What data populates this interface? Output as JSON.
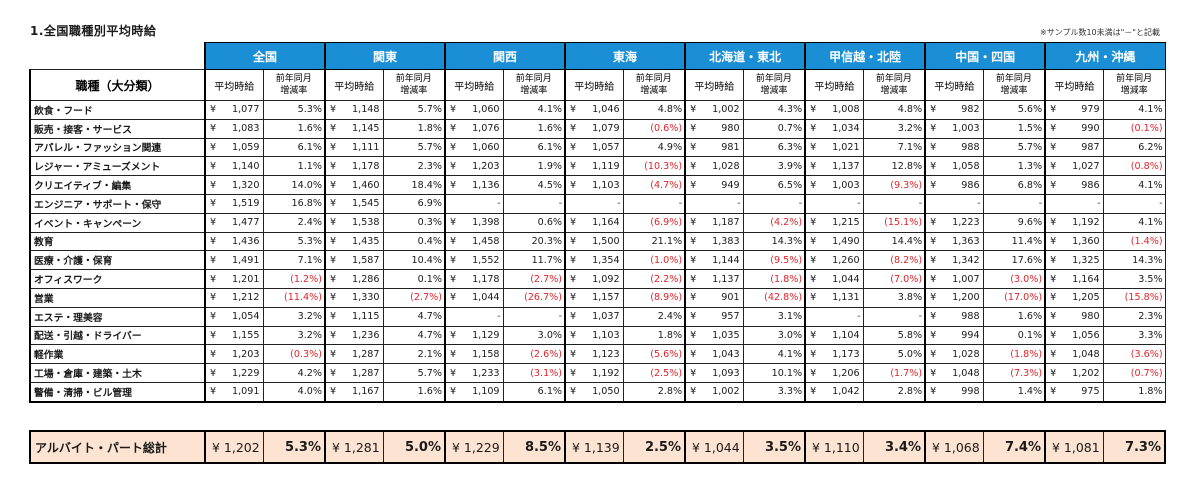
{
  "title": "1.全国職種別平均時給",
  "note": "※サンプル数10未満は\"－\"と記載",
  "regions": [
    "全国",
    "関東",
    "関西",
    "東海",
    "北海道・東北",
    "甲信越・北陸",
    "中国・四国",
    "九州・沖縄"
  ],
  "category_header": "職種（大分類）",
  "sub_wage": "平均時給",
  "sub_rate_1": "前年同月",
  "sub_rate_2": "増減率",
  "yen": "¥",
  "rows": [
    {
      "job": "飲食・フード",
      "cells": [
        [
          "1,077",
          "5.3%"
        ],
        [
          "1,148",
          "5.7%"
        ],
        [
          "1,060",
          "4.1%"
        ],
        [
          "1,046",
          "4.8%"
        ],
        [
          "1,002",
          "4.3%"
        ],
        [
          "1,008",
          "4.8%"
        ],
        [
          "982",
          "5.6%"
        ],
        [
          "979",
          "4.1%"
        ]
      ]
    },
    {
      "job": "販売・接客・サービス",
      "cells": [
        [
          "1,083",
          "1.6%"
        ],
        [
          "1,145",
          "1.8%"
        ],
        [
          "1,076",
          "1.6%"
        ],
        [
          "1,079",
          "(0.6%)"
        ],
        [
          "980",
          "0.7%"
        ],
        [
          "1,034",
          "3.2%"
        ],
        [
          "1,003",
          "1.5%"
        ],
        [
          "990",
          "(0.1%)"
        ]
      ]
    },
    {
      "job": "アパレル・ファッション関連",
      "cells": [
        [
          "1,059",
          "6.1%"
        ],
        [
          "1,111",
          "5.7%"
        ],
        [
          "1,060",
          "6.1%"
        ],
        [
          "1,057",
          "4.9%"
        ],
        [
          "981",
          "6.3%"
        ],
        [
          "1,021",
          "7.1%"
        ],
        [
          "988",
          "5.7%"
        ],
        [
          "987",
          "6.2%"
        ]
      ]
    },
    {
      "job": "レジャー・アミューズメント",
      "cells": [
        [
          "1,140",
          "1.1%"
        ],
        [
          "1,178",
          "2.3%"
        ],
        [
          "1,203",
          "1.9%"
        ],
        [
          "1,119",
          "(10.3%)"
        ],
        [
          "1,028",
          "3.9%"
        ],
        [
          "1,137",
          "12.8%"
        ],
        [
          "1,058",
          "1.3%"
        ],
        [
          "1,027",
          "(0.8%)"
        ]
      ]
    },
    {
      "job": "クリエイティブ・編集",
      "cells": [
        [
          "1,320",
          "14.0%"
        ],
        [
          "1,460",
          "18.4%"
        ],
        [
          "1,136",
          "4.5%"
        ],
        [
          "1,103",
          "(4.7%)"
        ],
        [
          "949",
          "6.5%"
        ],
        [
          "1,003",
          "(9.3%)"
        ],
        [
          "986",
          "6.8%"
        ],
        [
          "986",
          "4.1%"
        ]
      ]
    },
    {
      "job": "エンジニア・サポート・保守",
      "cells": [
        [
          "1,519",
          "16.8%"
        ],
        [
          "1,545",
          "6.9%"
        ],
        [
          "-",
          "-"
        ],
        [
          "-",
          "-"
        ],
        [
          "-",
          "-"
        ],
        [
          "-",
          "-"
        ],
        [
          "-",
          "-"
        ],
        [
          "-",
          "-"
        ]
      ]
    },
    {
      "job": "イベント・キャンペーン",
      "cells": [
        [
          "1,477",
          "2.4%"
        ],
        [
          "1,538",
          "0.3%"
        ],
        [
          "1,398",
          "0.6%"
        ],
        [
          "1,164",
          "(6.9%)"
        ],
        [
          "1,187",
          "(4.2%)"
        ],
        [
          "1,215",
          "(15.1%)"
        ],
        [
          "1,223",
          "9.6%"
        ],
        [
          "1,192",
          "4.1%"
        ]
      ]
    },
    {
      "job": "教育",
      "cells": [
        [
          "1,436",
          "5.3%"
        ],
        [
          "1,435",
          "0.4%"
        ],
        [
          "1,458",
          "20.3%"
        ],
        [
          "1,500",
          "21.1%"
        ],
        [
          "1,383",
          "14.3%"
        ],
        [
          "1,490",
          "14.4%"
        ],
        [
          "1,363",
          "11.4%"
        ],
        [
          "1,360",
          "(1.4%)"
        ]
      ]
    },
    {
      "job": "医療・介護・保育",
      "cells": [
        [
          "1,491",
          "7.1%"
        ],
        [
          "1,587",
          "10.4%"
        ],
        [
          "1,552",
          "11.7%"
        ],
        [
          "1,354",
          "(1.0%)"
        ],
        [
          "1,144",
          "(9.5%)"
        ],
        [
          "1,260",
          "(8.2%)"
        ],
        [
          "1,342",
          "17.6%"
        ],
        [
          "1,325",
          "14.3%"
        ]
      ]
    },
    {
      "job": "オフィスワーク",
      "cells": [
        [
          "1,201",
          "(1.2%)"
        ],
        [
          "1,286",
          "0.1%"
        ],
        [
          "1,178",
          "(2.7%)"
        ],
        [
          "1,092",
          "(2.2%)"
        ],
        [
          "1,137",
          "(1.8%)"
        ],
        [
          "1,044",
          "(7.0%)"
        ],
        [
          "1,007",
          "(3.0%)"
        ],
        [
          "1,164",
          "3.5%"
        ]
      ]
    },
    {
      "job": "営業",
      "cells": [
        [
          "1,212",
          "(11.4%)"
        ],
        [
          "1,330",
          "(2.7%)"
        ],
        [
          "1,044",
          "(26.7%)"
        ],
        [
          "1,157",
          "(8.9%)"
        ],
        [
          "901",
          "(42.8%)"
        ],
        [
          "1,131",
          "3.8%"
        ],
        [
          "1,200",
          "(17.0%)"
        ],
        [
          "1,205",
          "(15.8%)"
        ]
      ]
    },
    {
      "job": "エステ・理美容",
      "cells": [
        [
          "1,054",
          "3.2%"
        ],
        [
          "1,115",
          "4.7%"
        ],
        [
          "-",
          "-"
        ],
        [
          "1,037",
          "2.4%"
        ],
        [
          "957",
          "3.1%"
        ],
        [
          "-",
          "-"
        ],
        [
          "988",
          "1.6%"
        ],
        [
          "980",
          "2.3%"
        ]
      ]
    },
    {
      "job": "配送・引越・ドライバー",
      "cells": [
        [
          "1,155",
          "3.2%"
        ],
        [
          "1,236",
          "4.7%"
        ],
        [
          "1,129",
          "3.0%"
        ],
        [
          "1,103",
          "1.8%"
        ],
        [
          "1,035",
          "3.0%"
        ],
        [
          "1,104",
          "5.8%"
        ],
        [
          "994",
          "0.1%"
        ],
        [
          "1,056",
          "3.3%"
        ]
      ]
    },
    {
      "job": "軽作業",
      "cells": [
        [
          "1,203",
          "(0.3%)"
        ],
        [
          "1,287",
          "2.1%"
        ],
        [
          "1,158",
          "(2.6%)"
        ],
        [
          "1,123",
          "(5.6%)"
        ],
        [
          "1,043",
          "4.1%"
        ],
        [
          "1,173",
          "5.0%"
        ],
        [
          "1,028",
          "(1.8%)"
        ],
        [
          "1,048",
          "(3.6%)"
        ]
      ]
    },
    {
      "job": "工場・倉庫・建築・土木",
      "cells": [
        [
          "1,229",
          "4.2%"
        ],
        [
          "1,287",
          "5.7%"
        ],
        [
          "1,233",
          "(3.1%)"
        ],
        [
          "1,192",
          "(2.5%)"
        ],
        [
          "1,093",
          "10.1%"
        ],
        [
          "1,206",
          "(1.7%)"
        ],
        [
          "1,048",
          "(7.3%)"
        ],
        [
          "1,202",
          "(0.7%)"
        ]
      ]
    },
    {
      "job": "警備・清掃・ビル管理",
      "cells": [
        [
          "1,091",
          "4.0%"
        ],
        [
          "1,167",
          "1.6%"
        ],
        [
          "1,109",
          "6.1%"
        ],
        [
          "1,050",
          "2.8%"
        ],
        [
          "1,002",
          "3.3%"
        ],
        [
          "1,042",
          "2.8%"
        ],
        [
          "998",
          "1.4%"
        ],
        [
          "975",
          "1.8%"
        ]
      ]
    }
  ],
  "total": {
    "label": "アルバイト・パート総計",
    "cells": [
      [
        "¥ 1,202",
        "5.3%"
      ],
      [
        "¥ 1,281",
        "5.0%"
      ],
      [
        "¥ 1,229",
        "8.5%"
      ],
      [
        "¥ 1,139",
        "2.5%"
      ],
      [
        "¥ 1,044",
        "3.5%"
      ],
      [
        "¥ 1,110",
        "3.4%"
      ],
      [
        "¥ 1,068",
        "7.4%"
      ],
      [
        "¥ 1,081",
        "7.3%"
      ]
    ]
  },
  "colors": {
    "header_bg": "#1b8fd6",
    "negative": "#e0242a",
    "total_bg": "#fde4d2"
  }
}
